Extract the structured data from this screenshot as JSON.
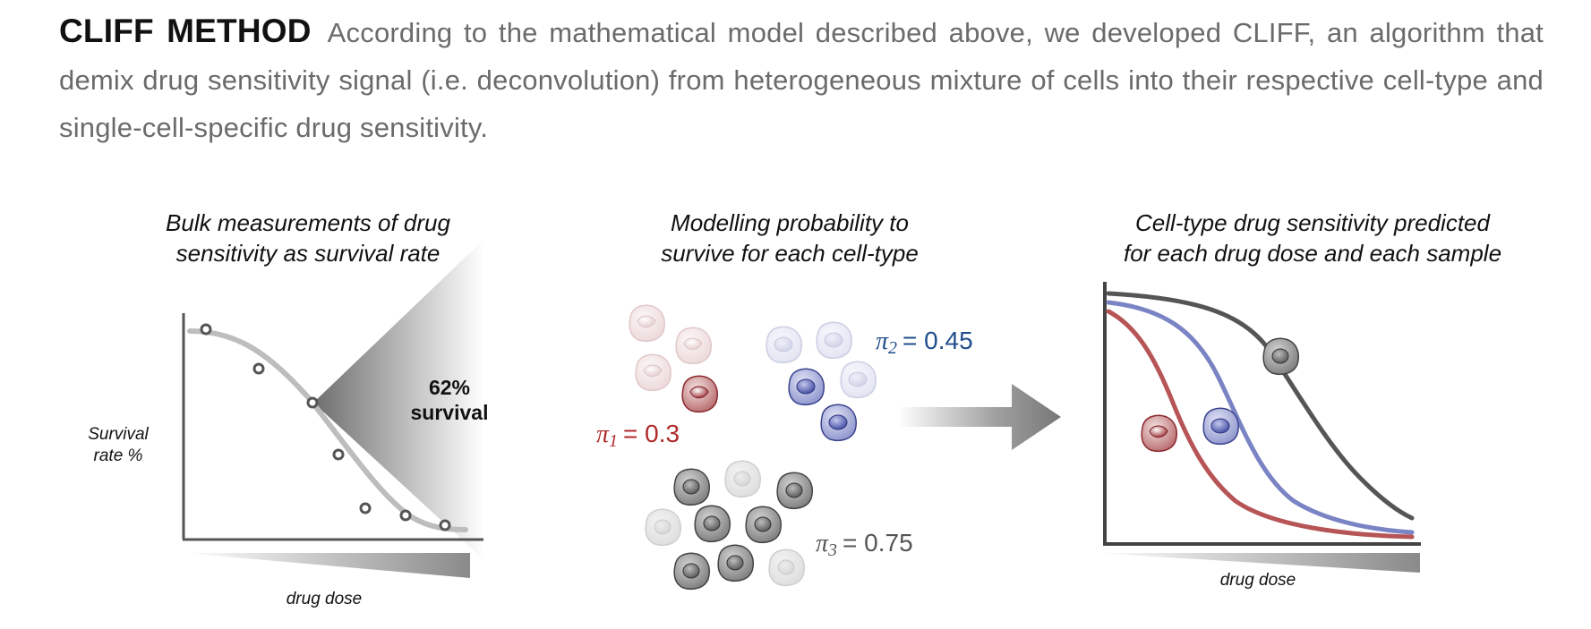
{
  "intro": {
    "heading": "CLIFF METHOD",
    "body": "According to the mathematical model described above, we developed CLIFF, an algorithm that demix drug sensitivity signal (i.e. deconvolution) from heterogeneous mixture of cells into their respective cell-type and single-cell-specific drug sensitivity."
  },
  "panel1": {
    "title_line1": "Bulk measurements of drug",
    "title_line2": "sensitivity as survival rate",
    "ylabel_line1": "Survival",
    "ylabel_line2": "rate %",
    "xlabel": "drug dose",
    "callout_line1": "62%",
    "callout_line2": "survival"
  },
  "panel2": {
    "title_line1": "Modelling probability to",
    "title_line2": "survive for each cell-type",
    "pi1": {
      "symbol": "π",
      "sub": "1",
      "value": "= 0.3",
      "color": "#b02a2a"
    },
    "pi2": {
      "symbol": "π",
      "sub": "2",
      "value": "= 0.45",
      "color": "#1f4e8c"
    },
    "pi3": {
      "symbol": "π",
      "sub": "3",
      "value": "= 0.75",
      "color": "#555555"
    }
  },
  "panel3": {
    "title_line1": "Cell-type drug sensitivity predicted",
    "title_line2": "for each drug dose and each sample",
    "xlabel": "drug dose"
  },
  "colors": {
    "red": "#b65456",
    "blue": "#7a84c4",
    "gray": "#555555",
    "light_curve": "#bdbdbd"
  }
}
